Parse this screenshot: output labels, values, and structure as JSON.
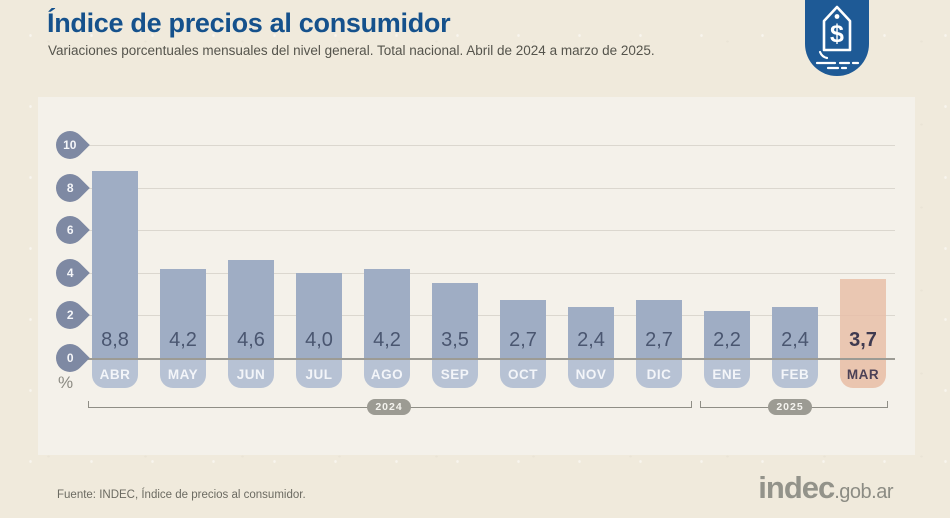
{
  "header": {
    "title": "Índice de precios al consumidor",
    "subtitle": "Variaciones porcentuales mensuales del nivel general. Total nacional. Abril de 2024 a marzo de 2025.",
    "badge_icon": "price-tag-dollar-icon",
    "badge_color": "#1e5a96"
  },
  "chart_data": {
    "type": "bar",
    "title": "Índice de precios al consumidor",
    "subtitle": "Variaciones porcentuales mensuales del nivel general. Total nacional. Abril de 2024 a marzo de 2025.",
    "categories": [
      "ABR",
      "MAY",
      "JUN",
      "JUL",
      "AGO",
      "SEP",
      "OCT",
      "NOV",
      "DIC",
      "ENE",
      "FEB",
      "MAR"
    ],
    "values": [
      8.8,
      4.2,
      4.6,
      4.0,
      4.2,
      3.5,
      2.7,
      2.4,
      2.7,
      2.2,
      2.4,
      3.7
    ],
    "value_labels": [
      "8,8",
      "4,2",
      "4,6",
      "4,0",
      "4,2",
      "3,5",
      "2,7",
      "2,4",
      "2,7",
      "2,2",
      "2,4",
      "3,7"
    ],
    "highlight_index": 11,
    "unit": "%",
    "ylabel": "%",
    "yticks": [
      10,
      8,
      6,
      4,
      2,
      0
    ],
    "ylim": [
      0,
      10
    ],
    "grid": true,
    "legend": null,
    "year_groups": [
      {
        "label": "2024",
        "from": "ABR",
        "to": "DIC"
      },
      {
        "label": "2025",
        "from": "ENE",
        "to": "MAR"
      }
    ],
    "colors": {
      "bar": "#9fadc4",
      "bar_tab": "#b7c2d4",
      "highlight_bar": "#eac7b3",
      "value_text": "#4a5670",
      "highlight_text": "#3f3a50",
      "axis_pin": "#7e89a3",
      "zero_line": "#9c9b94",
      "gridline": "#dbd7cf",
      "panel_bg": "#f4f1ea",
      "page_bg": "#f0eadc",
      "title_color": "#15518c"
    }
  },
  "footer": {
    "source": "Fuente: INDEC, Índice de precios al consumidor.",
    "logo_main": "indec",
    "logo_suffix": ".gob.ar"
  }
}
